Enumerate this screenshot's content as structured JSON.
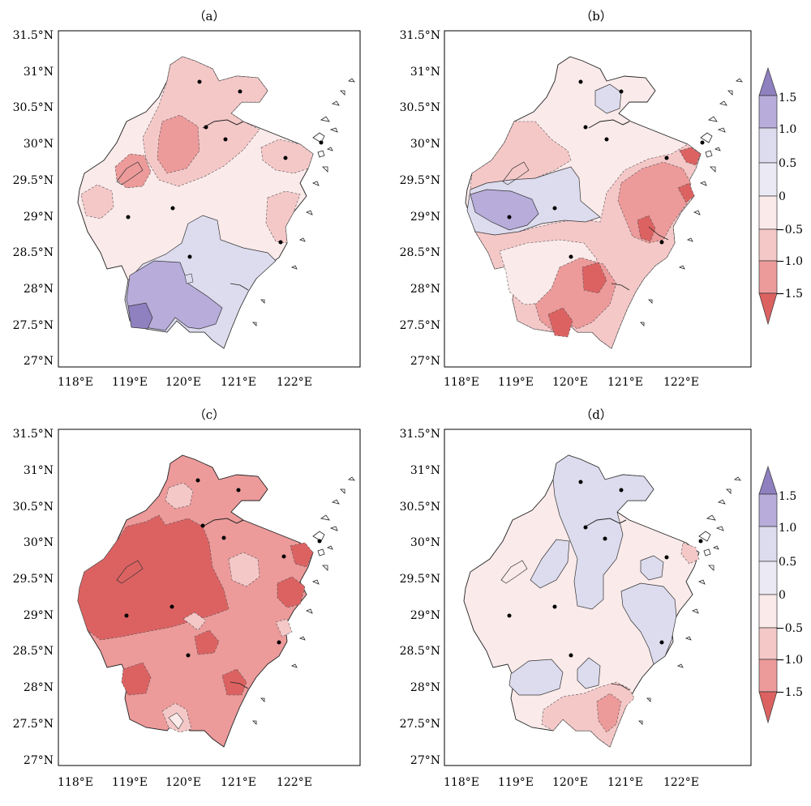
{
  "panels": [
    {
      "title": "（a）"
    },
    {
      "title": "（b）"
    },
    {
      "title": "（c）"
    },
    {
      "title": "（d）"
    }
  ],
  "axes": {
    "lat_labels": [
      "31.5°N",
      "31°N",
      "30.5°N",
      "30°N",
      "29.5°N",
      "29°N",
      "28.5°N",
      "28°N",
      "27.5°N",
      "27°N"
    ],
    "lon_labels": [
      "118°E",
      "119°E",
      "120°E",
      "121°E",
      "122°E"
    ]
  },
  "colorbar": {
    "labels": [
      "1.5",
      "1.0",
      "0.5",
      "0",
      "−0.5",
      "−1.0",
      "−1.5"
    ],
    "colors": [
      "#8f80c0",
      "#b8acda",
      "#dcdcee",
      "#fbeaea",
      "#f5c8c8",
      "#ec9a9a",
      "#dc6262"
    ]
  }
}
